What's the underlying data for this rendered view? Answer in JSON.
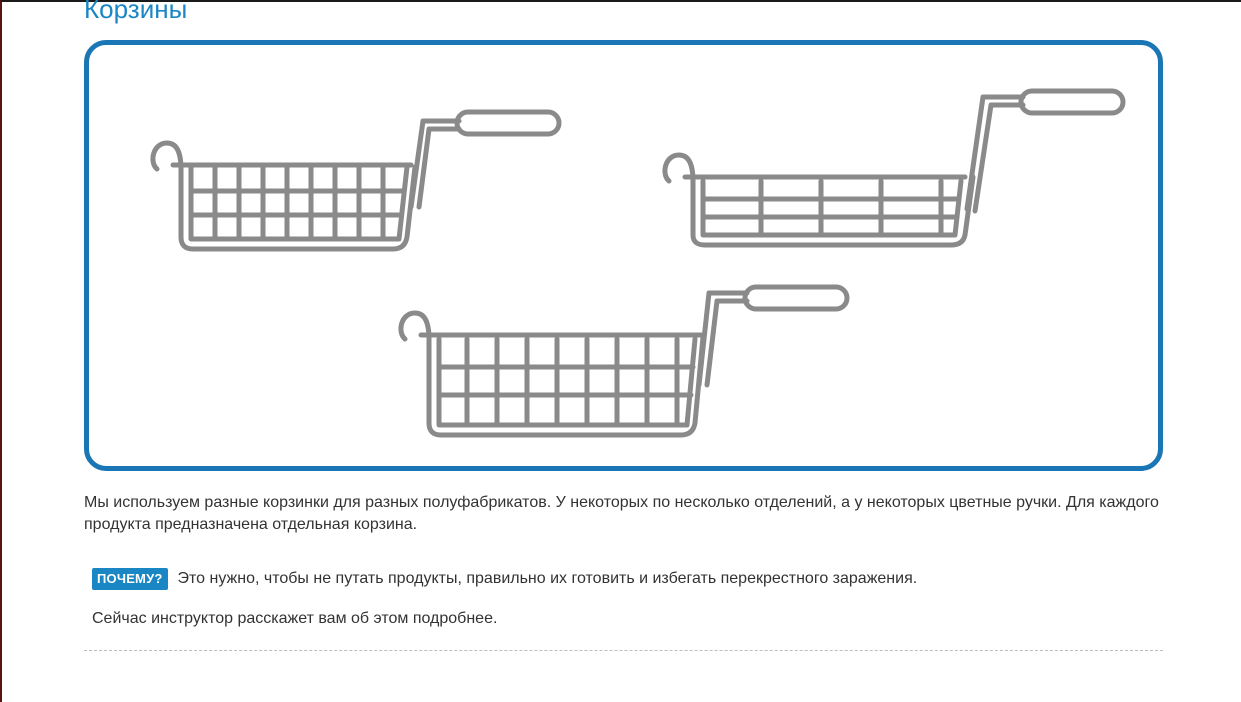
{
  "page": {
    "title": "Корзины"
  },
  "illustration": {
    "baskets": [
      {
        "name": "basket-single-compartment",
        "compartments": 1
      },
      {
        "name": "basket-two-compartment",
        "compartments": 2
      },
      {
        "name": "basket-wide",
        "compartments": 1
      }
    ],
    "stroke_color": "#8a8a8a",
    "border_color": "#1a76b4"
  },
  "content": {
    "paragraph": "Мы используем разные корзинки для разных полуфабрикатов. У некоторых по несколько отделений, а у некоторых цветные ручки. Для каждого продукта предназначена отдельная корзина.",
    "why_badge": "ПОЧЕМУ?",
    "why_text": "Это нужно, чтобы не путать продукты, правильно их готовить и избегать перекрестного заражения.",
    "note": "Сейчас инструктор расскажет вам об этом подробнее."
  },
  "colors": {
    "accent": "#1a86c4",
    "text": "#333333"
  }
}
